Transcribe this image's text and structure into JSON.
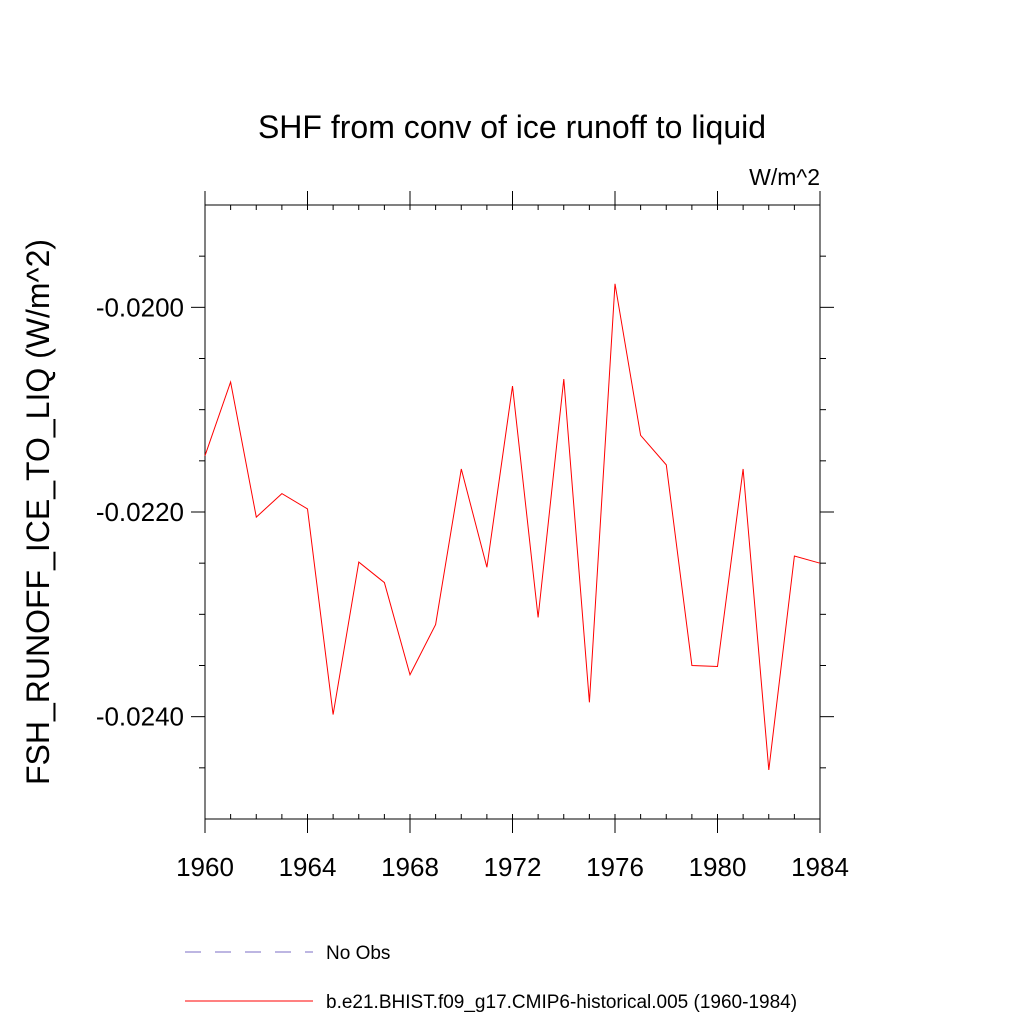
{
  "chart_data": {
    "type": "line",
    "title": "SHF from conv of ice runoff to liquid",
    "units_label": "W/m^2",
    "xlabel": "",
    "ylabel": "FSH_RUNOFF_ICE_TO_LIQ  (W/m^2)",
    "xlim": [
      1960,
      1984
    ],
    "ylim": [
      -0.025,
      -0.019
    ],
    "x_ticks": [
      1960,
      1964,
      1968,
      1972,
      1976,
      1980,
      1984
    ],
    "x_tick_labels": [
      "1960",
      "1964",
      "1968",
      "1972",
      "1976",
      "1980",
      "1984"
    ],
    "y_ticks": [
      -0.024,
      -0.022,
      -0.02
    ],
    "y_tick_labels": [
      "-0.0240",
      "-0.0220",
      "-0.0200"
    ],
    "y_minor_ticks": [
      -0.0245,
      -0.0235,
      -0.023,
      -0.0225,
      -0.0215,
      -0.021,
      -0.0205,
      -0.0195
    ],
    "x_minor_step": 1,
    "grid": false,
    "legend_position": "bottom",
    "series": [
      {
        "name": "b.e21.BHIST.f09_g17.CMIP6-historical.005 (1960-1984)",
        "color": "#ff0000",
        "style": "solid",
        "x": [
          1960,
          1961,
          1962,
          1963,
          1964,
          1965,
          1966,
          1967,
          1968,
          1969,
          1970,
          1971,
          1972,
          1973,
          1974,
          1975,
          1976,
          1977,
          1978,
          1979,
          1980,
          1981,
          1982,
          1983,
          1984
        ],
        "values": [
          -0.02145,
          -0.02073,
          -0.02205,
          -0.02182,
          -0.02197,
          -0.02398,
          -0.02249,
          -0.02269,
          -0.02359,
          -0.0231,
          -0.02158,
          -0.02254,
          -0.02077,
          -0.02303,
          -0.0207,
          -0.02386,
          -0.01977,
          -0.02125,
          -0.02154,
          -0.0235,
          -0.02351,
          -0.02158,
          -0.02452,
          -0.02243,
          -0.0225
        ]
      }
    ],
    "legend": [
      {
        "label": "No Obs",
        "color": "#7b6cc4",
        "style": "dashed"
      },
      {
        "label": "b.e21.BHIST.f09_g17.CMIP6-historical.005 (1960-1984)",
        "color": "#ff0000",
        "style": "solid"
      }
    ]
  }
}
